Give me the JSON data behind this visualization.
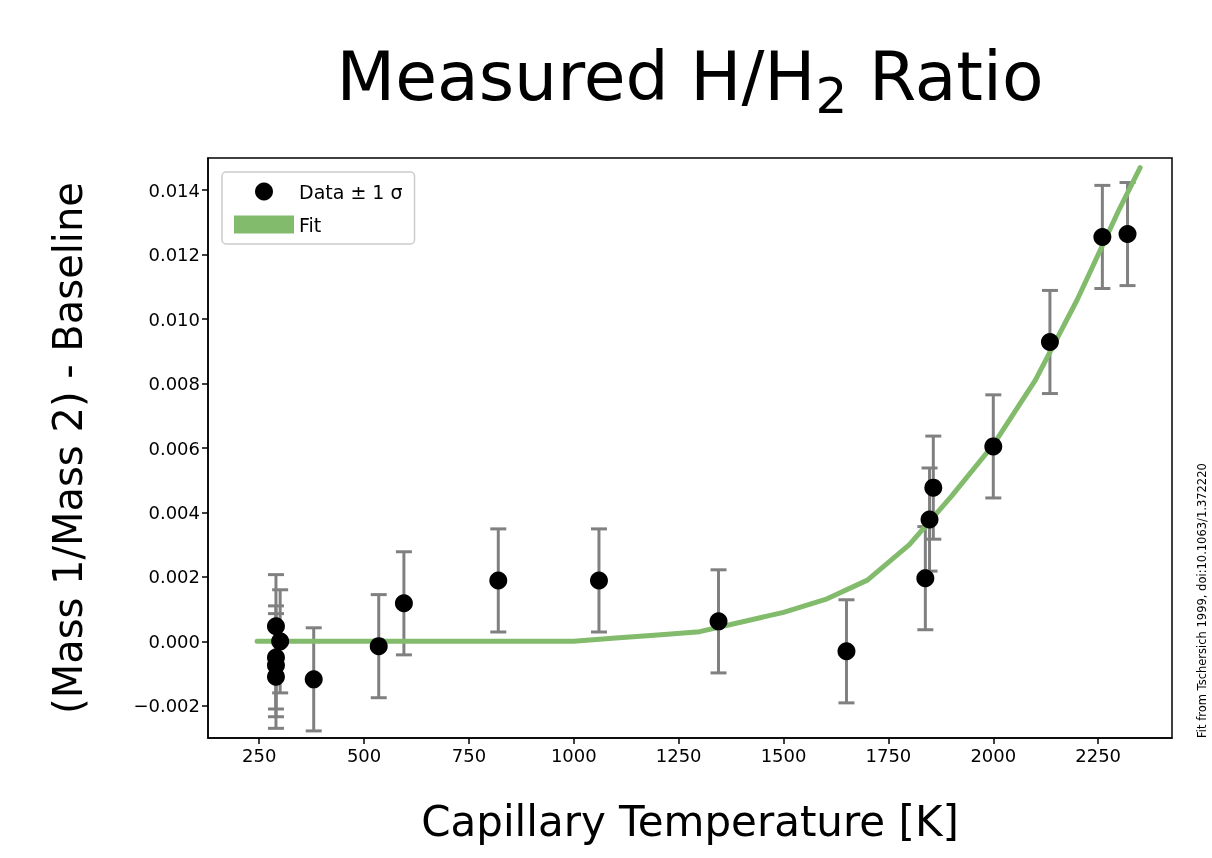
{
  "chart_data": {
    "type": "scatter",
    "title": "Measured H/H$_{2}$ Ratio",
    "xlabel": "Capillary Temperature [K]",
    "ylabel": "(Mass 1/Mass 2) - Baseline",
    "annotations": [
      "Fit from Tschersich 1999, doi:10.1063/1.372220"
    ],
    "xlim": [
      128,
      2426
    ],
    "xticks": [
      250,
      500,
      750,
      1000,
      1250,
      1500,
      1750,
      2000,
      2250
    ],
    "ylim": [
      -0.003,
      0.015
    ],
    "yticks": [
      {
        "value": -0.002,
        "label": "−0.002"
      },
      {
        "value": 0,
        "label": "0.000"
      },
      {
        "value": 0.002,
        "label": "0.002"
      },
      {
        "value": 0.004,
        "label": "0.004"
      },
      {
        "value": 0.006,
        "label": "0.006"
      },
      {
        "value": 0.008,
        "label": "0.008"
      },
      {
        "value": 0.01,
        "label": "0.010"
      },
      {
        "value": 0.012,
        "label": "0.012"
      },
      {
        "value": 0.014,
        "label": "0.014"
      }
    ],
    "legend": "top left",
    "grid": false,
    "series": [
      {
        "name": "Data ± 1 σ",
        "marker": "circle",
        "color": "#000000",
        "x": [
          290,
          300,
          290,
          290,
          290,
          380,
          535,
          595,
          820,
          1060,
          1345,
          1650,
          1838,
          1848,
          1857,
          2000,
          2135,
          2260,
          2320
        ],
        "values": [
          0.00047,
          0,
          -0.0005,
          -0.00074,
          -0.0011,
          -0.00118,
          -0.00015,
          0.00118,
          0.00189,
          0.00189,
          0.00062,
          -0.00031,
          0.00196,
          0.00378,
          0.00477,
          0.00605,
          0.00929,
          0.01255,
          0.01264
        ],
        "errors": [
          0.0016,
          0.0016,
          0.0016,
          0.0016,
          0.0016,
          0.0016,
          0.0016,
          0.0016,
          0.0016,
          0.0016,
          0.0016,
          0.0016,
          0.0016,
          0.0016,
          0.0016,
          0.0016,
          0.0016,
          0.0016,
          0.0016
        ]
      },
      {
        "name": "Fit",
        "type": "line",
        "marker": "none",
        "color": "#82bb6c",
        "x": [
          245,
          500,
          750,
          1000,
          1100,
          1200,
          1300,
          1400,
          1500,
          1600,
          1700,
          1800,
          1900,
          2000,
          2100,
          2200,
          2300,
          2350
        ],
        "values": [
          0,
          0,
          0,
          0,
          0.0001,
          0.0002,
          0.0003,
          0.0006,
          0.0009,
          0.0013,
          0.0019,
          0.003,
          0.0045,
          0.0061,
          0.0081,
          0.0106,
          0.0134,
          0.0147
        ]
      }
    ]
  }
}
